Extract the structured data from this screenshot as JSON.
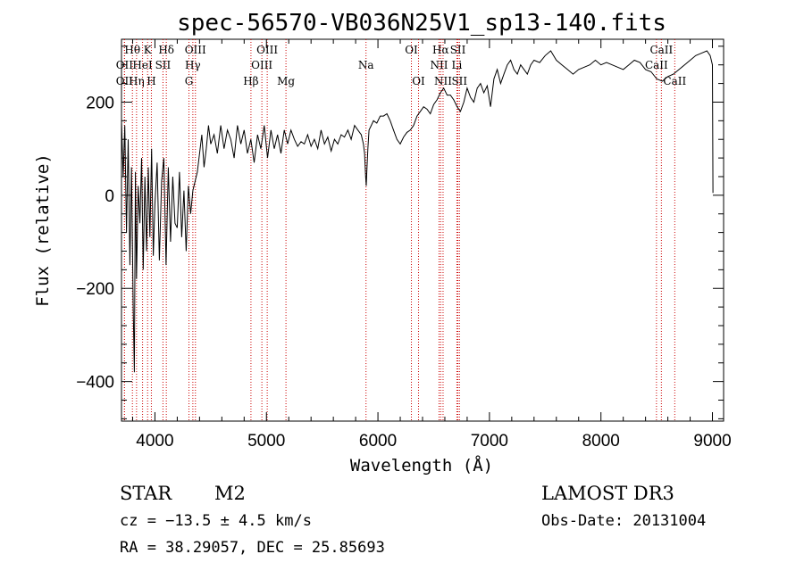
{
  "chart_data": {
    "type": "line",
    "title": "spec-56570-VB036N25V1_sp13-140.fits",
    "xlabel": "Wavelength (Å)",
    "ylabel": "Flux (relative)",
    "xlim": [
      3700,
      9100
    ],
    "ylim": [
      -485,
      335
    ],
    "xticks": [
      4000,
      5000,
      6000,
      7000,
      8000,
      9000
    ],
    "xtick_labels": [
      "4000",
      "5000",
      "6000",
      "7000",
      "8000",
      "9000"
    ],
    "yticks": [
      -400,
      -200,
      0,
      200
    ],
    "ytick_labels": [
      "−400",
      "−200",
      "0",
      "200"
    ],
    "series": [
      {
        "name": "flux",
        "color": "#000000",
        "x": [
          3700,
          3715,
          3730,
          3745,
          3760,
          3775,
          3790,
          3805,
          3815,
          3825,
          3835,
          3850,
          3865,
          3880,
          3895,
          3910,
          3925,
          3940,
          3955,
          3970,
          3985,
          4000,
          4020,
          4040,
          4060,
          4080,
          4100,
          4120,
          4140,
          4160,
          4180,
          4200,
          4220,
          4240,
          4260,
          4280,
          4300,
          4320,
          4340,
          4360,
          4380,
          4400,
          4420,
          4440,
          4460,
          4480,
          4500,
          4530,
          4560,
          4590,
          4620,
          4650,
          4680,
          4710,
          4740,
          4770,
          4800,
          4830,
          4860,
          4890,
          4920,
          4950,
          4980,
          5010,
          5040,
          5070,
          5100,
          5130,
          5160,
          5190,
          5220,
          5250,
          5280,
          5310,
          5340,
          5370,
          5400,
          5430,
          5460,
          5490,
          5520,
          5550,
          5580,
          5610,
          5640,
          5670,
          5700,
          5730,
          5760,
          5790,
          5820,
          5850,
          5870,
          5880,
          5890,
          5895,
          5900,
          5910,
          5920,
          5940,
          5960,
          5990,
          6020,
          6050,
          6080,
          6110,
          6140,
          6170,
          6200,
          6230,
          6260,
          6290,
          6320,
          6350,
          6380,
          6410,
          6440,
          6470,
          6500,
          6530,
          6560,
          6590,
          6620,
          6650,
          6680,
          6710,
          6740,
          6770,
          6800,
          6830,
          6860,
          6890,
          6920,
          6950,
          6980,
          7010,
          7040,
          7070,
          7100,
          7130,
          7160,
          7190,
          7220,
          7250,
          7280,
          7310,
          7340,
          7370,
          7400,
          7450,
          7500,
          7550,
          7600,
          7650,
          7700,
          7750,
          7800,
          7850,
          7900,
          7950,
          8000,
          8050,
          8100,
          8150,
          8200,
          8250,
          8300,
          8350,
          8400,
          8450,
          8500,
          8550,
          8600,
          8650,
          8700,
          8750,
          8800,
          8850,
          8900,
          8950,
          8980,
          9000,
          9005
        ],
        "values": [
          160,
          40,
          150,
          -80,
          120,
          -150,
          60,
          -240,
          -380,
          50,
          -180,
          20,
          -60,
          80,
          -160,
          40,
          -120,
          60,
          -90,
          100,
          -130,
          -20,
          70,
          -140,
          30,
          80,
          -150,
          60,
          -100,
          40,
          -60,
          -70,
          50,
          -90,
          10,
          -120,
          20,
          -40,
          10,
          30,
          50,
          90,
          130,
          60,
          100,
          150,
          110,
          130,
          90,
          150,
          100,
          140,
          120,
          80,
          150,
          110,
          140,
          90,
          120,
          70,
          130,
          100,
          150,
          80,
          140,
          100,
          130,
          90,
          140,
          110,
          140,
          120,
          105,
          115,
          110,
          130,
          105,
          120,
          100,
          140,
          110,
          125,
          95,
          120,
          110,
          130,
          125,
          140,
          120,
          150,
          140,
          130,
          110,
          90,
          40,
          20,
          50,
          100,
          140,
          150,
          160,
          155,
          170,
          170,
          175,
          160,
          140,
          120,
          110,
          125,
          135,
          140,
          150,
          170,
          180,
          190,
          185,
          175,
          195,
          205,
          220,
          230,
          215,
          215,
          205,
          190,
          180,
          200,
          230,
          210,
          200,
          230,
          240,
          220,
          235,
          190,
          250,
          270,
          240,
          260,
          280,
          290,
          270,
          260,
          280,
          270,
          260,
          280,
          290,
          285,
          300,
          310,
          290,
          280,
          270,
          260,
          270,
          275,
          280,
          290,
          280,
          285,
          280,
          275,
          270,
          280,
          290,
          285,
          270,
          265,
          250,
          245,
          255,
          260,
          270,
          280,
          290,
          300,
          305,
          310,
          300,
          280,
          5
        ]
      }
    ],
    "lines": [
      {
        "name": "Hθ",
        "x": 3798,
        "row": 0
      },
      {
        "name": "OII",
        "x": 3727,
        "row": 1
      },
      {
        "name": "OII",
        "x": 3727,
        "row": 2
      },
      {
        "name": "Hη",
        "x": 3835,
        "row": 2
      },
      {
        "name": "K",
        "x": 3934,
        "row": 0
      },
      {
        "name": "HeI",
        "x": 3889,
        "row": 1
      },
      {
        "name": "H",
        "x": 3968,
        "row": 2
      },
      {
        "name": "SII",
        "x": 4072,
        "row": 1
      },
      {
        "name": "Hδ",
        "x": 4102,
        "row": 0
      },
      {
        "name": "OIII",
        "x": 4363,
        "row": 0
      },
      {
        "name": "Hγ",
        "x": 4340,
        "row": 1
      },
      {
        "name": "G",
        "x": 4305,
        "row": 2
      },
      {
        "name": "Hβ",
        "x": 4861,
        "row": 2
      },
      {
        "name": "OIII",
        "x": 5007,
        "row": 0
      },
      {
        "name": "OIII",
        "x": 4959,
        "row": 1
      },
      {
        "name": "Mg",
        "x": 5175,
        "row": 2
      },
      {
        "name": "Na",
        "x": 5893,
        "row": 1
      },
      {
        "name": "OI",
        "x": 6300,
        "row": 0
      },
      {
        "name": "OI",
        "x": 6364,
        "row": 2
      },
      {
        "name": "Hα",
        "x": 6563,
        "row": 0
      },
      {
        "name": "SII",
        "x": 6717,
        "row": 0
      },
      {
        "name": "NII",
        "x": 6548,
        "row": 1
      },
      {
        "name": "Li",
        "x": 6708,
        "row": 1
      },
      {
        "name": "NII",
        "x": 6584,
        "row": 2
      },
      {
        "name": "SII",
        "x": 6731,
        "row": 2
      },
      {
        "name": "CaII",
        "x": 8542,
        "row": 0
      },
      {
        "name": "CaII",
        "x": 8498,
        "row": 1
      },
      {
        "name": "CaII",
        "x": 8662,
        "row": 2
      }
    ],
    "grid": false,
    "line_marker_color": "#cc0000"
  },
  "info": {
    "object_class": "STAR",
    "subclass": "M2",
    "survey": "LAMOST DR3",
    "cz": "cz = −13.5 ± 4.5 km/s",
    "obs_date": "Obs-Date: 20131004",
    "coords": "RA =  38.29057, DEC =  25.85693"
  }
}
